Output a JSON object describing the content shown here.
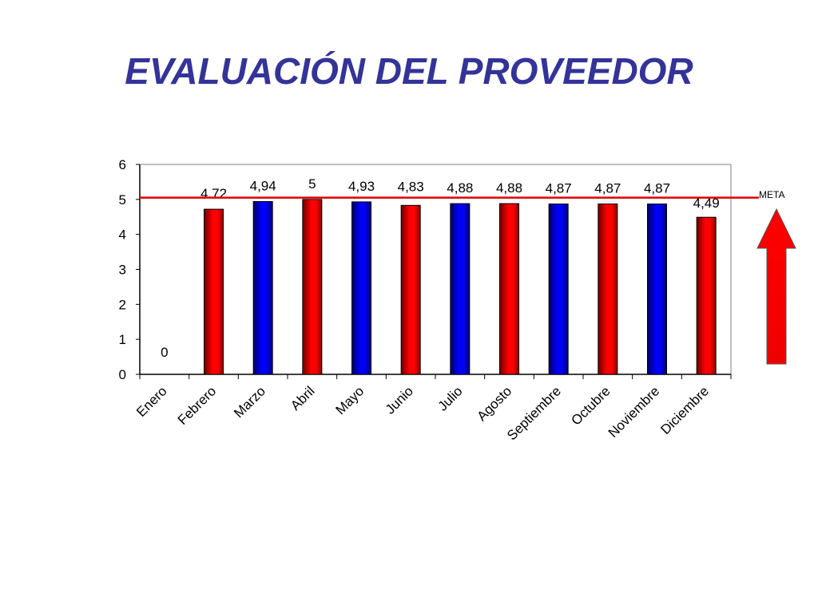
{
  "title": "EVALUACIÓN DEL PROVEEDOR",
  "meta_label": "META",
  "colors": {
    "title": "#333399",
    "red_bar": "#ff0000",
    "blue_bar": "#0000cc",
    "meta_line": "#e00000"
  },
  "chart_data": {
    "type": "bar",
    "title": "EVALUACIÓN DEL PROVEEDOR",
    "xlabel": "",
    "ylabel": "",
    "ylim": [
      0,
      6
    ],
    "yticks": [
      "0",
      "1",
      "2",
      "3",
      "4",
      "5",
      "6"
    ],
    "categories": [
      "Enero",
      "Febrero",
      "Marzo",
      "Abril",
      "Mayo",
      "Junio",
      "Julio",
      "Agosto",
      "Septiembre",
      "Octubre",
      "Noviembre",
      "Diciembre"
    ],
    "values": [
      0,
      4.72,
      4.94,
      5,
      4.93,
      4.83,
      4.88,
      4.88,
      4.87,
      4.87,
      4.87,
      4.49
    ],
    "data_labels": [
      "0",
      "4.72",
      "4,94",
      "5",
      "4,93",
      "4,83",
      "4,88",
      "4,88",
      "4,87",
      "4,87",
      "4,87",
      "4,49"
    ],
    "bar_colors": [
      "red",
      "red",
      "blue",
      "red",
      "blue",
      "red",
      "blue",
      "red",
      "blue",
      "red",
      "blue",
      "red"
    ],
    "target_line": {
      "label": "META",
      "value": 5.05
    },
    "grid": false,
    "legend": "none"
  }
}
